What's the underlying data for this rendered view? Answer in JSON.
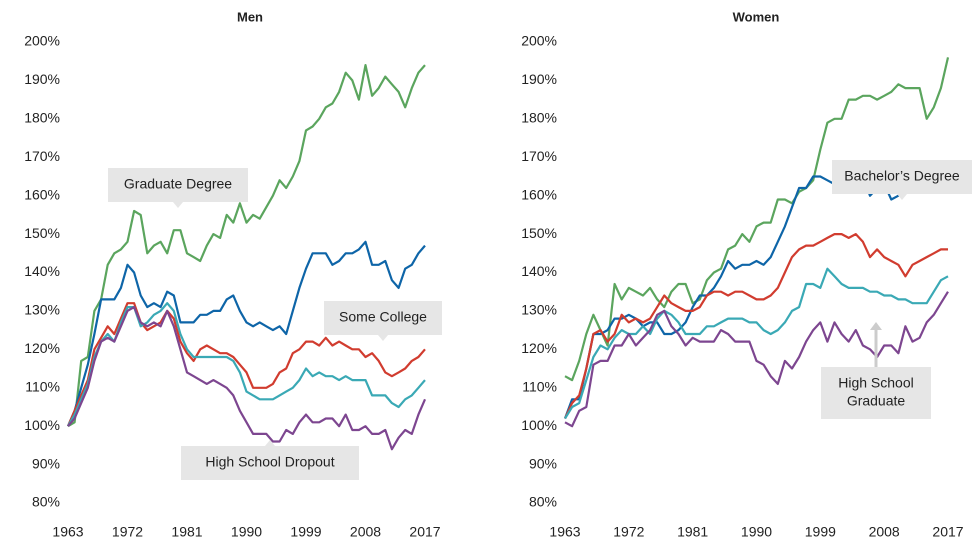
{
  "chart_data": [
    {
      "type": "line",
      "title": "Men",
      "x": [
        1963,
        1964,
        1965,
        1966,
        1967,
        1968,
        1969,
        1970,
        1971,
        1972,
        1973,
        1974,
        1975,
        1976,
        1977,
        1978,
        1979,
        1980,
        1981,
        1982,
        1983,
        1984,
        1985,
        1986,
        1987,
        1988,
        1989,
        1990,
        1991,
        1992,
        1993,
        1994,
        1995,
        1996,
        1997,
        1998,
        1999,
        2000,
        2001,
        2002,
        2003,
        2004,
        2005,
        2006,
        2007,
        2008,
        2009,
        2010,
        2011,
        2012,
        2013,
        2014,
        2015,
        2016,
        2017
      ],
      "xlim": [
        1963,
        2017
      ],
      "xticks": [
        1963,
        1972,
        1981,
        1990,
        1999,
        2008,
        2017
      ],
      "ylim": [
        80,
        200
      ],
      "yticks": [
        {
          "value": 80,
          "label": "80%"
        },
        {
          "value": 90,
          "label": "90%"
        },
        {
          "value": 100,
          "label": "100%"
        },
        {
          "value": 110,
          "label": "110%"
        },
        {
          "value": 120,
          "label": "120%"
        },
        {
          "value": 130,
          "label": "130%"
        },
        {
          "value": 140,
          "label": "140%"
        },
        {
          "value": 150,
          "label": "150%"
        },
        {
          "value": 160,
          "label": "160%"
        },
        {
          "value": 170,
          "label": "170%"
        },
        {
          "value": 180,
          "label": "180%"
        },
        {
          "value": 190,
          "label": "190%"
        },
        {
          "value": 200,
          "label": "200%"
        }
      ],
      "annotations": [
        {
          "text": [
            "Graduate Degree"
          ]
        },
        {
          "text": [
            "Some College"
          ]
        },
        {
          "text": [
            "High School Dropout"
          ]
        }
      ],
      "series": [
        {
          "color": "#5ba55e",
          "values": [
            100,
            101,
            117,
            118,
            130,
            133,
            142,
            145,
            146,
            148,
            156,
            155,
            145,
            147,
            148,
            145,
            151,
            151,
            145,
            144,
            143,
            147,
            150,
            149,
            155,
            153,
            158,
            153,
            155,
            154,
            157,
            160,
            164,
            162,
            165,
            169,
            177,
            178,
            180,
            183,
            184,
            187,
            192,
            190,
            185,
            194,
            186,
            188,
            191,
            189,
            187,
            183,
            188,
            192,
            194
          ]
        },
        {
          "color": "#0e65a8",
          "values": [
            100,
            104,
            110,
            116,
            124,
            133,
            133,
            133,
            136,
            142,
            140,
            134,
            131,
            132,
            131,
            135,
            134,
            127,
            127,
            127,
            129,
            129,
            130,
            130,
            133,
            134,
            130,
            127,
            126,
            127,
            126,
            125,
            126,
            124,
            130,
            136,
            141,
            145,
            145,
            145,
            142,
            143,
            145,
            145,
            146,
            148,
            142,
            142,
            143,
            138,
            136,
            141,
            142,
            145,
            147
          ]
        },
        {
          "color": "#d13c2f",
          "values": [
            100,
            104,
            108,
            112,
            120,
            123,
            126,
            124,
            128,
            132,
            132,
            127,
            125,
            126,
            127,
            130,
            128,
            122,
            119,
            117,
            120,
            121,
            120,
            119,
            119,
            118,
            116,
            114,
            110,
            110,
            110,
            111,
            114,
            115,
            119,
            120,
            122,
            122,
            121,
            123,
            121,
            122,
            121,
            120,
            120,
            118,
            119,
            117,
            114,
            113,
            114,
            115,
            117,
            118,
            120
          ]
        },
        {
          "color": "#3aa9b5",
          "values": [
            100,
            103,
            107,
            111,
            118,
            122,
            124,
            122,
            127,
            131,
            131,
            126,
            127,
            129,
            130,
            132,
            130,
            124,
            120,
            118,
            118,
            118,
            118,
            118,
            118,
            117,
            114,
            109,
            108,
            107,
            107,
            107,
            108,
            109,
            110,
            112,
            115,
            113,
            114,
            113,
            113,
            112,
            113,
            112,
            112,
            112,
            108,
            108,
            108,
            106,
            105,
            107,
            108,
            110,
            112
          ]
        },
        {
          "color": "#7d4690",
          "values": [
            100,
            102,
            106,
            110,
            117,
            122,
            123,
            122,
            126,
            130,
            131,
            127,
            126,
            127,
            126,
            130,
            126,
            120,
            114,
            113,
            112,
            111,
            112,
            111,
            110,
            108,
            104,
            101,
            98,
            98,
            98,
            96,
            96,
            99,
            98,
            101,
            103,
            101,
            101,
            102,
            102,
            100,
            103,
            99,
            99,
            100,
            98,
            98,
            99,
            94,
            97,
            99,
            98,
            103,
            107
          ]
        }
      ]
    },
    {
      "type": "line",
      "title": "Women",
      "x": [
        1963,
        1964,
        1965,
        1966,
        1967,
        1968,
        1969,
        1970,
        1971,
        1972,
        1973,
        1974,
        1975,
        1976,
        1977,
        1978,
        1979,
        1980,
        1981,
        1982,
        1983,
        1984,
        1985,
        1986,
        1987,
        1988,
        1989,
        1990,
        1991,
        1992,
        1993,
        1994,
        1995,
        1996,
        1997,
        1998,
        1999,
        2000,
        2001,
        2002,
        2003,
        2004,
        2005,
        2006,
        2007,
        2008,
        2009,
        2010,
        2011,
        2012,
        2013,
        2014,
        2015,
        2016,
        2017
      ],
      "xlim": [
        1963,
        2017
      ],
      "xticks": [
        1963,
        1972,
        1981,
        1990,
        1999,
        2008,
        2017
      ],
      "ylim": [
        80,
        200
      ],
      "yticks": [
        {
          "value": 80,
          "label": "80%"
        },
        {
          "value": 90,
          "label": "90%"
        },
        {
          "value": 100,
          "label": "100%"
        },
        {
          "value": 110,
          "label": "110%"
        },
        {
          "value": 120,
          "label": "120%"
        },
        {
          "value": 130,
          "label": "130%"
        },
        {
          "value": 140,
          "label": "140%"
        },
        {
          "value": 150,
          "label": "150%"
        },
        {
          "value": 160,
          "label": "160%"
        },
        {
          "value": 170,
          "label": "170%"
        },
        {
          "value": 180,
          "label": "180%"
        },
        {
          "value": 190,
          "label": "190%"
        },
        {
          "value": 200,
          "label": "200%"
        }
      ],
      "annotations": [
        {
          "text": [
            "Bachelor’s Degree"
          ]
        },
        {
          "text": [
            "High School",
            "Graduate"
          ]
        }
      ],
      "series": [
        {
          "color": "#5ba55e",
          "values": [
            113,
            112,
            117,
            124,
            129,
            125,
            121,
            137,
            133,
            136,
            135,
            134,
            136,
            133,
            131,
            135,
            137,
            137,
            132,
            133,
            138,
            140,
            141,
            146,
            147,
            150,
            148,
            152,
            153,
            153,
            159,
            159,
            158,
            161,
            162,
            164,
            172,
            179,
            180,
            180,
            185,
            185,
            186,
            186,
            185,
            186,
            187,
            189,
            188,
            188,
            188,
            180,
            183,
            188,
            196
          ]
        },
        {
          "color": "#0e65a8",
          "values": [
            102,
            107,
            107,
            115,
            124,
            124,
            125,
            128,
            128,
            129,
            128,
            126,
            127,
            127,
            124,
            124,
            125,
            127,
            131,
            134,
            134,
            136,
            139,
            143,
            141,
            142,
            142,
            143,
            142,
            144,
            148,
            152,
            157,
            162,
            162,
            165,
            165,
            164,
            163,
            165,
            165,
            166,
            165,
            160,
            162,
            163,
            159,
            160,
            161,
            162,
            163,
            164,
            166,
            167,
            168
          ]
        },
        {
          "color": "#d13c2f",
          "values": [
            102,
            106,
            108,
            115,
            124,
            125,
            122,
            124,
            129,
            127,
            128,
            127,
            128,
            131,
            134,
            132,
            131,
            130,
            130,
            131,
            134,
            135,
            135,
            134,
            135,
            135,
            134,
            133,
            133,
            134,
            136,
            140,
            144,
            146,
            147,
            147,
            148,
            149,
            150,
            150,
            149,
            150,
            148,
            144,
            146,
            144,
            143,
            142,
            139,
            142,
            143,
            144,
            145,
            146,
            146
          ]
        },
        {
          "color": "#3aa9b5",
          "values": [
            102,
            105,
            106,
            112,
            118,
            121,
            120,
            123,
            125,
            124,
            124,
            126,
            124,
            128,
            130,
            129,
            127,
            124,
            124,
            124,
            126,
            126,
            127,
            128,
            128,
            128,
            127,
            127,
            125,
            124,
            125,
            127,
            130,
            131,
            137,
            137,
            136,
            141,
            139,
            137,
            136,
            136,
            136,
            135,
            135,
            134,
            134,
            133,
            133,
            132,
            132,
            132,
            135,
            138,
            139
          ]
        },
        {
          "color": "#7d4690",
          "values": [
            101,
            100,
            104,
            105,
            116,
            117,
            117,
            121,
            121,
            124,
            121,
            123,
            125,
            129,
            130,
            126,
            124,
            121,
            123,
            122,
            122,
            122,
            125,
            124,
            122,
            122,
            122,
            117,
            116,
            113,
            111,
            117,
            115,
            118,
            122,
            125,
            127,
            122,
            127,
            124,
            122,
            125,
            121,
            120,
            118,
            121,
            121,
            119,
            126,
            122,
            123,
            127,
            129,
            132,
            135
          ]
        }
      ]
    }
  ]
}
